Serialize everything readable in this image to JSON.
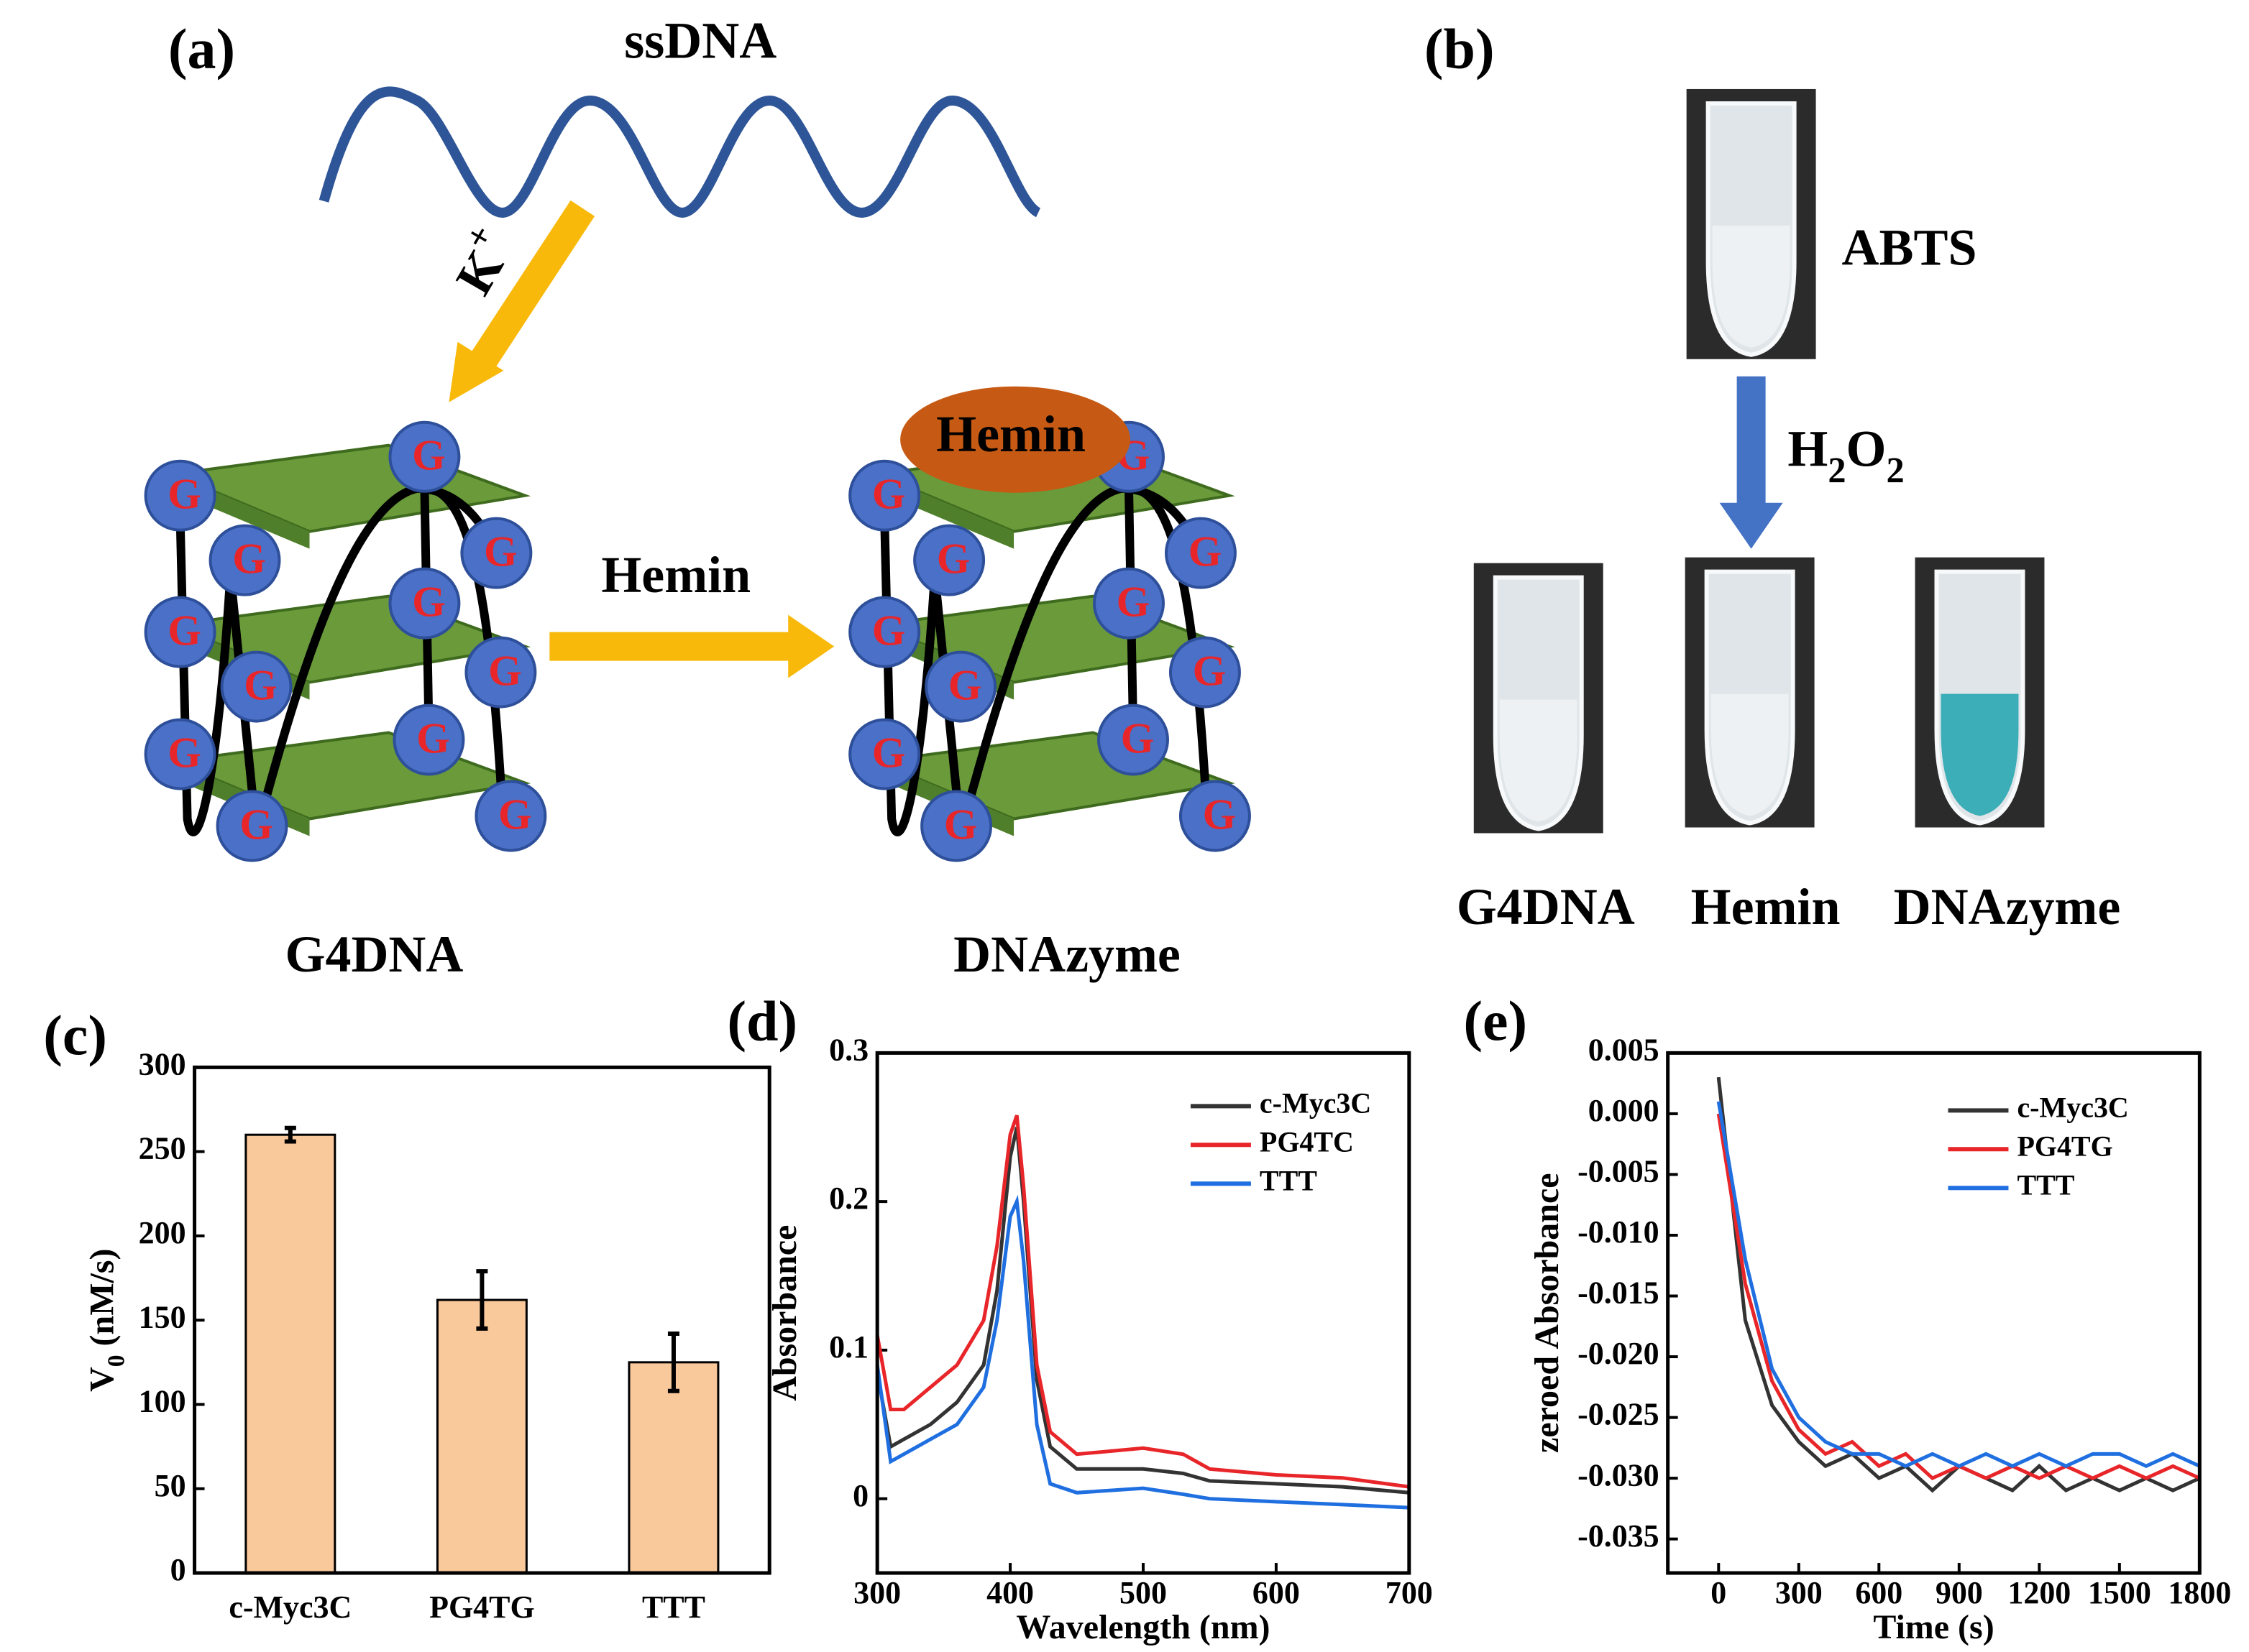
{
  "diagram": {
    "panel_a": "(a)",
    "ssdna": "ssDNA",
    "k_ion": "K+",
    "hemin_arrow": "Hemin",
    "hemin_oval": "Hemin",
    "g_letter": "G",
    "g4dna": "G4DNA",
    "dnazyme": "DNAzyme",
    "panel_b": "(b)",
    "abts": "ABTS",
    "h2o2": "H2O2",
    "tube_labels": [
      "G4DNA",
      "Hemin",
      "DNAzyme"
    ]
  },
  "chart_data": [
    {
      "type": "bar",
      "panel_label": "(c)",
      "y_label": "V0 (nM/s)",
      "categories": [
        "c-Myc3C",
        "PG4TG",
        "TTT"
      ],
      "values": [
        260,
        162,
        125
      ],
      "errors": [
        4,
        17,
        17
      ],
      "color": "#f9c89b",
      "ylim": [
        0,
        300
      ],
      "yticks": [
        0,
        50,
        100,
        150,
        200,
        250,
        300
      ]
    },
    {
      "type": "line",
      "panel_label": "(d)",
      "x_label": "Wavelength (nm)",
      "y_label": "Absorbance",
      "x": [
        300,
        310,
        320,
        340,
        360,
        380,
        390,
        400,
        405,
        410,
        420,
        430,
        450,
        500,
        530,
        550,
        600,
        650,
        700
      ],
      "series": [
        {
          "name": "c-Myc3C",
          "color": "#333333",
          "values": [
            0.085,
            0.035,
            0.04,
            0.05,
            0.065,
            0.09,
            0.14,
            0.23,
            0.25,
            0.2,
            0.08,
            0.035,
            0.02,
            0.02,
            0.017,
            0.012,
            0.01,
            0.008,
            0.004
          ]
        },
        {
          "name": "PG4TC",
          "color": "#e8262a",
          "values": [
            0.11,
            0.06,
            0.06,
            0.075,
            0.09,
            0.12,
            0.17,
            0.245,
            0.258,
            0.21,
            0.09,
            0.045,
            0.03,
            0.034,
            0.03,
            0.02,
            0.016,
            0.014,
            0.008
          ]
        },
        {
          "name": "TTT",
          "color": "#1f6fe0",
          "values": [
            0.09,
            0.025,
            0.03,
            0.04,
            0.05,
            0.075,
            0.12,
            0.19,
            0.2,
            0.16,
            0.05,
            0.01,
            0.004,
            0.007,
            0.003,
            0.0,
            -0.002,
            -0.004,
            -0.006
          ]
        }
      ],
      "xlim": [
        300,
        700
      ],
      "xticks": [
        300,
        400,
        500,
        600,
        700
      ],
      "ylim": [
        -0.05,
        0.3
      ],
      "yticks": [
        0,
        0.1,
        0.2,
        0.3
      ]
    },
    {
      "type": "line",
      "panel_label": "(e)",
      "x_label": "Time (s)",
      "y_label": "zeroed Absorbance",
      "x": [
        0,
        100,
        200,
        300,
        400,
        500,
        600,
        700,
        800,
        900,
        1000,
        1100,
        1200,
        1300,
        1400,
        1500,
        1600,
        1700,
        1800
      ],
      "series": [
        {
          "name": "c-Myc3C",
          "color": "#333333",
          "values": [
            0.003,
            -0.017,
            -0.024,
            -0.027,
            -0.029,
            -0.028,
            -0.03,
            -0.029,
            -0.031,
            -0.029,
            -0.03,
            -0.031,
            -0.029,
            -0.031,
            -0.03,
            -0.031,
            -0.03,
            -0.031,
            -0.03
          ]
        },
        {
          "name": "PG4TG",
          "color": "#e8262a",
          "values": [
            0.0,
            -0.014,
            -0.022,
            -0.026,
            -0.028,
            -0.027,
            -0.029,
            -0.028,
            -0.03,
            -0.029,
            -0.03,
            -0.029,
            -0.03,
            -0.029,
            -0.03,
            -0.029,
            -0.03,
            -0.029,
            -0.03
          ]
        },
        {
          "name": "TTT",
          "color": "#1f6fe0",
          "values": [
            0.001,
            -0.012,
            -0.021,
            -0.025,
            -0.027,
            -0.028,
            -0.028,
            -0.029,
            -0.028,
            -0.029,
            -0.028,
            -0.029,
            -0.028,
            -0.029,
            -0.028,
            -0.028,
            -0.029,
            -0.028,
            -0.029
          ]
        }
      ],
      "xlim": [
        -190,
        1800
      ],
      "xticks": [
        0,
        300,
        600,
        900,
        1200,
        1500,
        1800
      ],
      "ylim": [
        -0.0378,
        0.005
      ],
      "yticks": [
        -0.035,
        {
          "value": -0.03,
          "label": "-0.030"
        },
        -0.025,
        {
          "value": -0.02,
          "label": "-0.020"
        },
        -0.015,
        {
          "value": -0.01,
          "label": "-0.010"
        },
        -0.005,
        {
          "value": 0,
          "label": "0.000"
        },
        0.005
      ]
    }
  ]
}
